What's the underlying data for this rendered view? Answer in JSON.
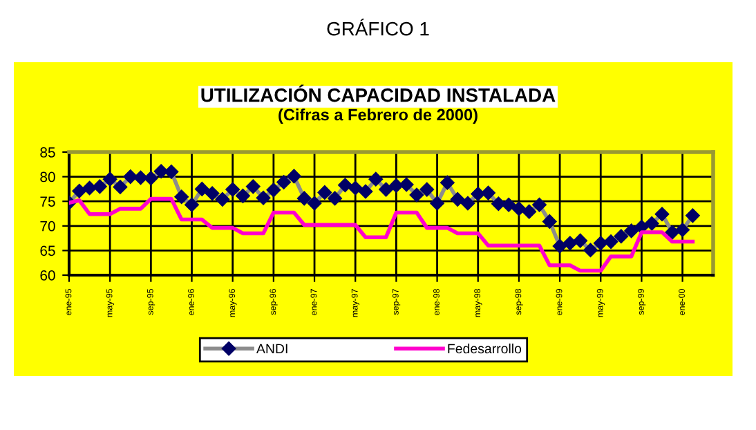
{
  "chart_data": {
    "type": "line",
    "title": "UTILIZACIÓN CAPACIDAD INSTALADA",
    "subtitle": "(Cifras a Febrero de 2000)",
    "annotations": [
      "GRÁFICO 1"
    ],
    "categories": [
      "ene-95",
      null,
      null,
      null,
      "may-95",
      null,
      null,
      null,
      "sep-95",
      null,
      null,
      null,
      "ene-96",
      null,
      null,
      null,
      "may-96",
      null,
      null,
      null,
      "sep-96",
      null,
      null,
      null,
      "ene-97",
      null,
      null,
      null,
      "may-97",
      null,
      null,
      null,
      "sep-97",
      null,
      null,
      null,
      "ene-98",
      null,
      null,
      null,
      "may-98",
      null,
      null,
      null,
      "sep-98",
      null,
      null,
      null,
      "ene-99",
      null,
      null,
      null,
      "may-99",
      null,
      null,
      null,
      "sep-99",
      null,
      null,
      null,
      "ene-00",
      null
    ],
    "series": [
      {
        "name": "ANDI",
        "color": "#000066",
        "marker": "diamond",
        "values": [
          74.7,
          77.1,
          77.7,
          78.0,
          79.5,
          77.9,
          80.0,
          79.8,
          79.7,
          81.1,
          81.0,
          75.9,
          74.3,
          77.5,
          76.6,
          75.4,
          77.4,
          76.1,
          78.0,
          75.7,
          77.3,
          78.9,
          80.1,
          75.6,
          74.6,
          76.8,
          75.6,
          78.3,
          77.7,
          77.0,
          79.5,
          77.4,
          78.2,
          78.4,
          76.3,
          77.4,
          74.6,
          78.8,
          75.4,
          74.6,
          76.5,
          76.7,
          74.5,
          74.3,
          73.5,
          72.9,
          74.3,
          70.9,
          65.9,
          66.5,
          67.0,
          65.1,
          66.5,
          66.8,
          67.9,
          69.0,
          69.8,
          70.5,
          72.4,
          68.7,
          69.2,
          72.1
        ]
      },
      {
        "name": "Fedesarrollo",
        "color": "#ff00cc",
        "values": [
          74.7,
          75.2,
          72.4,
          72.4,
          72.4,
          73.5,
          73.5,
          73.5,
          75.5,
          75.5,
          75.5,
          71.3,
          71.3,
          71.3,
          69.6,
          69.6,
          69.6,
          68.5,
          68.5,
          68.5,
          72.7,
          72.7,
          72.7,
          70.2,
          70.2,
          70.2,
          70.2,
          70.2,
          70.2,
          67.7,
          67.7,
          67.7,
          72.7,
          72.7,
          72.7,
          69.6,
          69.6,
          69.6,
          68.5,
          68.5,
          68.5,
          66.0,
          66.0,
          66.0,
          66.0,
          66.0,
          66.0,
          62.0,
          62.0,
          62.0,
          60.9,
          60.9,
          60.9,
          63.8,
          63.8,
          63.8,
          68.7,
          68.7,
          68.7,
          66.8,
          66.8,
          66.8
        ]
      }
    ],
    "ylim": [
      60,
      85
    ],
    "yticks": [
      60,
      65,
      70,
      75,
      80,
      85
    ],
    "grid": true,
    "legend": "bottom"
  }
}
